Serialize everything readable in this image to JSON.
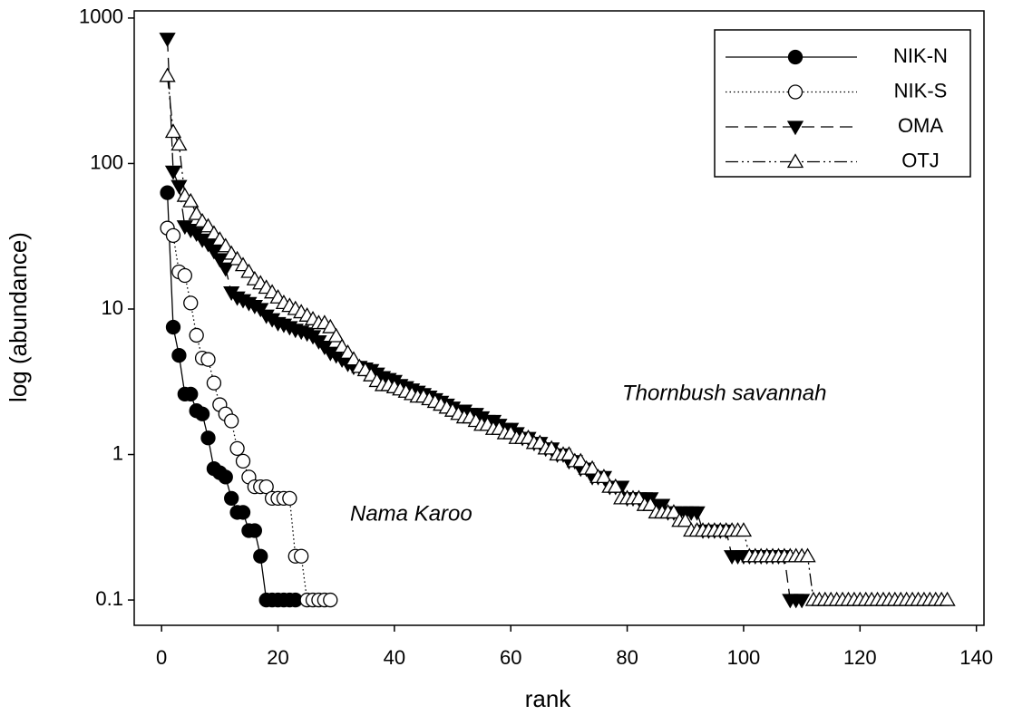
{
  "chart_data": {
    "type": "line",
    "log_scale_y": true,
    "grid": false,
    "legend_position": "upper right",
    "xlabel": "rank",
    "ylabel": "log (abundance)",
    "annotations": [
      "Thornbush savannah",
      "Nama Karoo"
    ],
    "xlim": [
      -4.7,
      141.3
    ],
    "xticks": [
      0,
      20,
      40,
      60,
      80,
      100,
      120,
      140
    ],
    "ylim": [
      0.067,
      1120
    ],
    "yticks": [
      0.1,
      1,
      10,
      100,
      1000
    ],
    "series": [
      {
        "name": "NIK-N",
        "color": "#000000",
        "line_style": "solid",
        "marker": "circle",
        "marker_filled": true,
        "x": [
          1,
          2,
          3,
          4,
          5,
          6,
          7,
          8,
          9,
          10,
          11,
          12,
          13,
          14,
          15,
          16,
          17,
          18,
          19,
          20,
          21,
          22,
          23
        ],
        "values": [
          63,
          7.5,
          4.8,
          2.6,
          2.6,
          2.0,
          1.9,
          1.3,
          0.8,
          0.75,
          0.7,
          0.5,
          0.4,
          0.4,
          0.3,
          0.3,
          0.2,
          0.1,
          0.1,
          0.1,
          0.1,
          0.1,
          0.1
        ]
      },
      {
        "name": "NIK-S",
        "color": "#000000",
        "line_style": "dotted",
        "marker": "circle",
        "marker_filled": false,
        "x": [
          1,
          2,
          3,
          4,
          5,
          6,
          7,
          8,
          9,
          10,
          11,
          12,
          13,
          14,
          15,
          16,
          17,
          18,
          19,
          20,
          21,
          22,
          23,
          24,
          25,
          26,
          27,
          28,
          29
        ],
        "values": [
          36,
          32,
          18,
          17,
          11,
          6.6,
          4.6,
          4.5,
          3.1,
          2.2,
          1.9,
          1.7,
          1.1,
          0.9,
          0.7,
          0.6,
          0.6,
          0.6,
          0.5,
          0.5,
          0.5,
          0.5,
          0.2,
          0.2,
          0.1,
          0.1,
          0.1,
          0.1,
          0.1
        ]
      },
      {
        "name": "OMA",
        "color": "#000000",
        "line_style": "dashed",
        "marker": "triangle-down",
        "marker_filled": true,
        "x": [
          1,
          2,
          3,
          4,
          5,
          6,
          7,
          8,
          9,
          10,
          11,
          12,
          13,
          14,
          15,
          16,
          17,
          18,
          19,
          20,
          21,
          22,
          23,
          24,
          25,
          26,
          27,
          28,
          29,
          30,
          31,
          32,
          33,
          34,
          35,
          36,
          37,
          38,
          39,
          40,
          41,
          42,
          43,
          44,
          45,
          46,
          47,
          48,
          49,
          50,
          51,
          52,
          53,
          54,
          55,
          56,
          57,
          58,
          59,
          60,
          61,
          62,
          63,
          64,
          65,
          66,
          67,
          68,
          69,
          70,
          71,
          72,
          73,
          74,
          75,
          76,
          77,
          78,
          79,
          80,
          81,
          82,
          83,
          84,
          85,
          86,
          87,
          88,
          89,
          90,
          91,
          92,
          93,
          94,
          95,
          96,
          97,
          98,
          99,
          100,
          101,
          102,
          103,
          104,
          105,
          106,
          107,
          108,
          109,
          110
        ],
        "values": [
          720,
          88,
          70,
          37,
          35,
          33,
          30,
          28,
          25,
          22,
          19,
          13,
          12,
          11.5,
          11,
          10.5,
          10,
          9,
          8.5,
          8,
          7.8,
          7.5,
          7.2,
          7,
          6.8,
          6.5,
          6,
          5.5,
          5,
          4.8,
          4.5,
          4.2,
          4,
          4,
          3.9,
          3.8,
          3.6,
          3.4,
          3.3,
          3.2,
          3,
          2.9,
          2.8,
          2.7,
          2.6,
          2.5,
          2.4,
          2.3,
          2.2,
          2.1,
          2,
          2,
          1.9,
          1.9,
          1.8,
          1.7,
          1.7,
          1.6,
          1.5,
          1.5,
          1.4,
          1.3,
          1.3,
          1.2,
          1.2,
          1.1,
          1.1,
          1,
          1,
          0.9,
          0.9,
          0.8,
          0.8,
          0.7,
          0.7,
          0.7,
          0.6,
          0.6,
          0.6,
          0.5,
          0.5,
          0.5,
          0.5,
          0.5,
          0.45,
          0.45,
          0.4,
          0.4,
          0.4,
          0.4,
          0.4,
          0.4,
          0.3,
          0.3,
          0.3,
          0.3,
          0.3,
          0.2,
          0.2,
          0.2,
          0.2,
          0.2,
          0.2,
          0.2,
          0.2,
          0.2,
          0.2,
          0.1,
          0.1,
          0.1
        ]
      },
      {
        "name": "OTJ",
        "color": "#000000",
        "line_style": "dashdotdot",
        "marker": "triangle-up",
        "marker_filled": false,
        "x": [
          1,
          2,
          3,
          4,
          5,
          6,
          7,
          8,
          9,
          10,
          11,
          12,
          13,
          14,
          15,
          16,
          17,
          18,
          19,
          20,
          21,
          22,
          23,
          24,
          25,
          26,
          27,
          28,
          29,
          30,
          31,
          32,
          33,
          34,
          35,
          36,
          37,
          38,
          39,
          40,
          41,
          42,
          43,
          44,
          45,
          46,
          47,
          48,
          49,
          50,
          51,
          52,
          53,
          54,
          55,
          56,
          57,
          58,
          59,
          60,
          61,
          62,
          63,
          64,
          65,
          66,
          67,
          68,
          69,
          70,
          71,
          72,
          73,
          74,
          75,
          76,
          77,
          78,
          79,
          80,
          81,
          82,
          83,
          84,
          85,
          86,
          87,
          88,
          89,
          90,
          91,
          92,
          93,
          94,
          95,
          96,
          97,
          98,
          99,
          100,
          101,
          102,
          103,
          104,
          105,
          106,
          107,
          108,
          109,
          110,
          111,
          112,
          113,
          114,
          115,
          116,
          117,
          118,
          119,
          120,
          121,
          122,
          123,
          124,
          125,
          126,
          127,
          128,
          129,
          130,
          131,
          132,
          133,
          134,
          135
        ],
        "values": [
          400,
          165,
          135,
          60,
          55,
          45,
          40,
          37,
          33,
          30,
          27,
          24,
          22,
          20,
          18,
          16,
          15,
          14,
          13,
          12,
          11,
          10.5,
          10,
          9.5,
          9,
          8.5,
          8,
          8,
          7.5,
          6.5,
          5.5,
          5,
          4.5,
          4,
          3.8,
          3.5,
          3.2,
          3,
          3,
          2.9,
          2.8,
          2.7,
          2.6,
          2.5,
          2.5,
          2.4,
          2.3,
          2.2,
          2.1,
          2,
          1.9,
          1.8,
          1.8,
          1.7,
          1.6,
          1.6,
          1.5,
          1.5,
          1.4,
          1.4,
          1.3,
          1.3,
          1.3,
          1.2,
          1.2,
          1.1,
          1.1,
          1,
          1,
          1,
          0.9,
          0.9,
          0.8,
          0.8,
          0.7,
          0.7,
          0.6,
          0.6,
          0.5,
          0.5,
          0.5,
          0.5,
          0.45,
          0.45,
          0.4,
          0.4,
          0.4,
          0.4,
          0.35,
          0.35,
          0.3,
          0.3,
          0.3,
          0.3,
          0.3,
          0.3,
          0.3,
          0.3,
          0.3,
          0.3,
          0.2,
          0.2,
          0.2,
          0.2,
          0.2,
          0.2,
          0.2,
          0.2,
          0.2,
          0.2,
          0.2,
          0.1,
          0.1,
          0.1,
          0.1,
          0.1,
          0.1,
          0.1,
          0.1,
          0.1,
          0.1,
          0.1,
          0.1,
          0.1,
          0.1,
          0.1,
          0.1,
          0.1,
          0.1,
          0.1,
          0.1,
          0.1,
          0.1,
          0.1,
          0.1
        ]
      }
    ]
  }
}
